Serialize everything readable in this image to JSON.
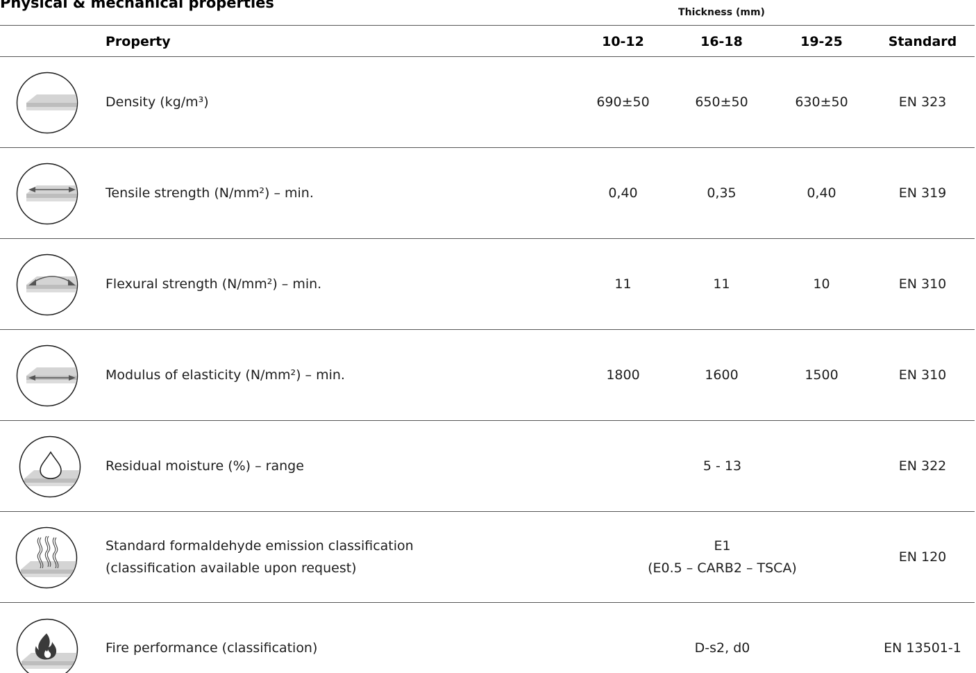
{
  "title": "Physical & mechanical properties",
  "thickness_label": "Thickness (mm)",
  "headers": {
    "property": "Property",
    "t1": "10-12",
    "t2": "16-18",
    "t3": "19-25",
    "standard": "Standard"
  },
  "rows": [
    {
      "icon": "density-icon",
      "label": "Density (kg/m³)",
      "t1": "690±50",
      "t2": "650±50",
      "t3": "630±50",
      "standard": "EN 323"
    },
    {
      "icon": "tensile-strength-icon",
      "label": "Tensile strength (N/mm²) – min.",
      "t1": "0,40",
      "t2": "0,35",
      "t3": "0,40",
      "standard": "EN 319"
    },
    {
      "icon": "flexural-strength-icon",
      "label": "Flexural strength (N/mm²) – min.",
      "t1": "11",
      "t2": "11",
      "t3": "10",
      "standard": "EN 310"
    },
    {
      "icon": "modulus-elasticity-icon",
      "label": "Modulus of elasticity (N/mm²) – min.",
      "t1": "1800",
      "t2": "1600",
      "t3": "1500",
      "standard": "EN 310"
    },
    {
      "icon": "moisture-drop-icon",
      "label": "Residual moisture (%) – range",
      "value": "5 - 13",
      "standard": "EN 322"
    },
    {
      "icon": "emission-vapor-icon",
      "label_line1": "Standard formaldehyde emission classification",
      "label_line2": "(classification available upon request)",
      "value_line1": "E1",
      "value_line2": "(E0.5 – CARB2 – TSCA)",
      "standard": "EN 120"
    },
    {
      "icon": "fire-flame-icon",
      "label": "Fire performance (classification)",
      "value": "D-s2, d0",
      "standard": "EN 13501-1"
    }
  ]
}
